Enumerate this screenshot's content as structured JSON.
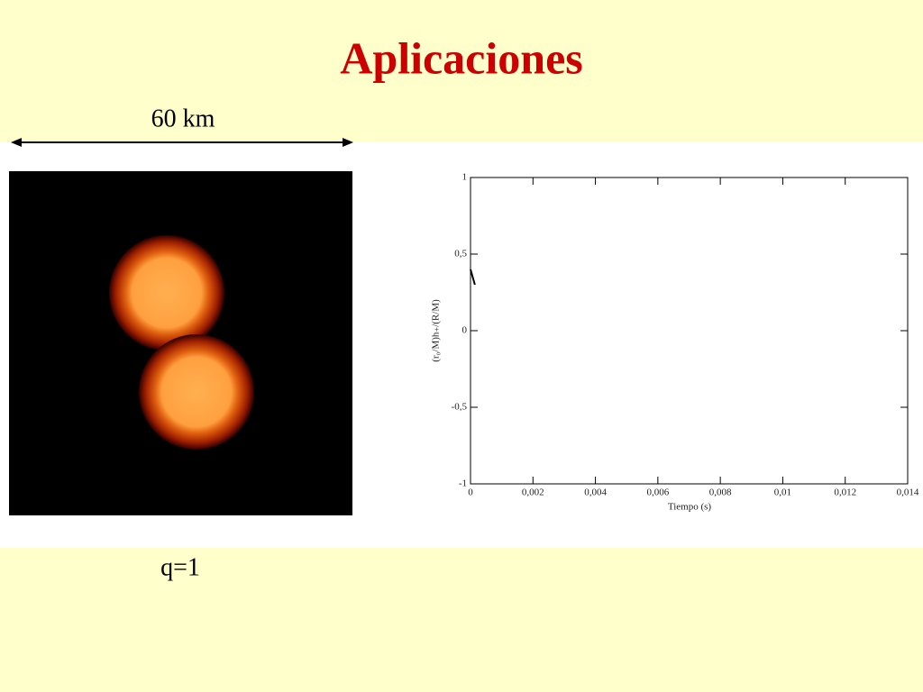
{
  "title": "Aplicaciones",
  "scale_label": "60 km",
  "caption": "q=1",
  "chart_data": {
    "type": "line",
    "x_label": "Tiempo (s)",
    "y_label": "(r₀/M)h₊/(R/M)",
    "x": [
      0,
      7e-05,
      0.00014
    ],
    "series": [
      {
        "color": "#000000",
        "values": [
          0.4,
          0.35,
          0.3
        ]
      }
    ],
    "xlim": [
      0,
      0.014
    ],
    "xticks": [
      0,
      {
        "value": 0.002,
        "label": "0,002"
      },
      {
        "value": 0.004,
        "label": "0,004"
      },
      {
        "value": 0.006,
        "label": "0,006"
      },
      {
        "value": 0.008,
        "label": "0,008"
      },
      {
        "value": 0.01,
        "label": "0,01"
      },
      {
        "value": 0.012,
        "label": "0,012"
      },
      {
        "value": 0.014,
        "label": "0,014"
      }
    ],
    "ylim": [
      -1,
      1
    ],
    "yticks": [
      -1,
      {
        "value": -0.5,
        "label": "-0,5"
      },
      0,
      {
        "value": 0.5,
        "label": "0,5"
      },
      1
    ]
  }
}
